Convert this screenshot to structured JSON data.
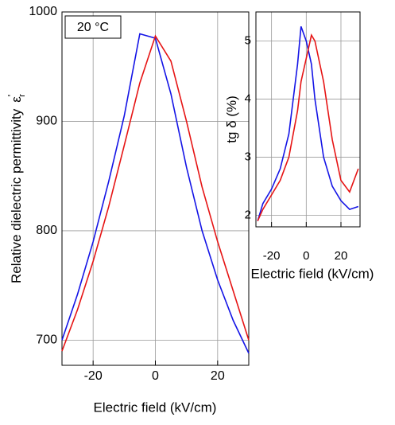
{
  "chart_data": [
    {
      "type": "line",
      "ylabel": "Relative dielectric permittivity",
      "ylabel_symbol": "ε",
      "ylabel_symbol_sup": "'",
      "ylabel_symbol_sub": "r",
      "xlabel": "Electric field (kV/cm)",
      "annotation": "20 °C",
      "x": [
        -30,
        -25,
        -20,
        -15,
        -10,
        -5,
        0,
        5,
        10,
        15,
        20,
        25,
        30
      ],
      "series": [
        {
          "color": "#1414e6",
          "values": [
            700,
            742,
            790,
            845,
            905,
            980,
            976,
            925,
            858,
            800,
            755,
            718,
            688
          ]
        },
        {
          "color": "#e61414",
          "values": [
            690,
            728,
            772,
            822,
            878,
            935,
            978,
            955,
            900,
            840,
            790,
            745,
            700
          ]
        }
      ],
      "xlim": [
        -30,
        30
      ],
      "ylim": [
        677,
        1000
      ],
      "xticks": [
        -20,
        0,
        20
      ],
      "yticks": [
        700,
        800,
        900,
        1000
      ],
      "grid": true
    },
    {
      "type": "line",
      "ylabel": "tg δ (%)",
      "xlabel": "Electric field (kV/cm)",
      "x": [
        -28,
        -25,
        -20,
        -15,
        -10,
        -5,
        -3,
        0,
        3,
        5,
        10,
        15,
        20,
        25,
        30
      ],
      "series": [
        {
          "color": "#1414e6",
          "values": [
            1.9,
            2.2,
            2.45,
            2.8,
            3.4,
            4.6,
            5.25,
            5.0,
            4.6,
            4.0,
            3.0,
            2.5,
            2.25,
            2.1,
            2.15
          ]
        },
        {
          "color": "#e61414",
          "values": [
            1.9,
            2.1,
            2.35,
            2.6,
            3.0,
            3.8,
            4.3,
            4.7,
            5.1,
            5.0,
            4.3,
            3.3,
            2.6,
            2.4,
            2.8
          ]
        }
      ],
      "xlim": [
        -29,
        31
      ],
      "ylim": [
        1.8,
        5.5
      ],
      "xticks": [
        -20,
        0,
        20
      ],
      "yticks": [
        2,
        3,
        4,
        5
      ],
      "grid": true
    }
  ]
}
